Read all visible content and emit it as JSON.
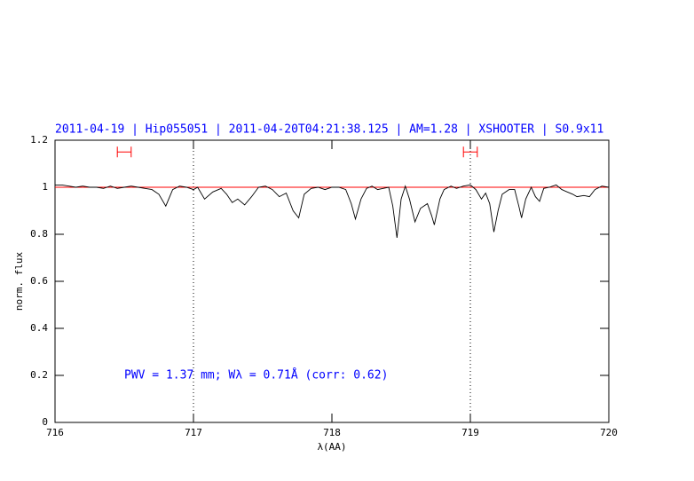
{
  "chart_data": {
    "type": "line",
    "title": "2011-04-19 | Hip055051 | 2011-04-20T04:21:38.125 | AM=1.28 | XSHOOTER | S0.9x11",
    "xlabel": "λ(AA)",
    "ylabel": "norm. flux",
    "annotation": "PWV = 1.37 mm; Wλ = 0.71Å (corr: 0.62)",
    "color": "#000000",
    "title_color": "#0000ff",
    "x": [
      716.0,
      716.05,
      716.1,
      716.15,
      716.2,
      716.25,
      716.3,
      716.35,
      716.4,
      716.45,
      716.5,
      716.55,
      716.6,
      716.65,
      716.7,
      716.75,
      716.8,
      716.85,
      716.9,
      716.95,
      717.0,
      717.03,
      717.08,
      717.14,
      717.2,
      717.24,
      717.28,
      717.32,
      717.37,
      717.42,
      717.47,
      717.52,
      717.57,
      717.62,
      717.67,
      717.72,
      717.76,
      717.8,
      717.85,
      717.9,
      717.95,
      718.0,
      718.05,
      718.1,
      718.14,
      718.17,
      718.21,
      718.25,
      718.29,
      718.33,
      718.37,
      718.41,
      718.44,
      718.47,
      718.5,
      718.53,
      718.56,
      718.6,
      718.64,
      718.69,
      718.72,
      718.74,
      718.78,
      718.81,
      718.86,
      718.9,
      718.95,
      719.0,
      719.04,
      719.08,
      719.11,
      719.14,
      719.17,
      719.2,
      719.23,
      719.28,
      719.32,
      719.35,
      719.37,
      719.4,
      719.44,
      719.47,
      719.5,
      719.53,
      719.57,
      719.62,
      719.66,
      719.7,
      719.74,
      719.77,
      719.82,
      719.86,
      719.9,
      719.95,
      720.0
    ],
    "values": [
      1.01,
      1.01,
      1.005,
      1.0,
      1.005,
      1.0,
      1.0,
      0.995,
      1.005,
      0.995,
      1.0,
      1.005,
      1.0,
      0.995,
      0.99,
      0.97,
      0.92,
      0.99,
      1.005,
      1.0,
      0.99,
      1.0,
      0.95,
      0.98,
      0.995,
      0.97,
      0.935,
      0.95,
      0.925,
      0.96,
      1.0,
      1.005,
      0.99,
      0.96,
      0.975,
      0.9,
      0.87,
      0.97,
      0.995,
      1.0,
      0.99,
      1.0,
      1.0,
      0.99,
      0.93,
      0.865,
      0.95,
      0.995,
      1.005,
      0.99,
      0.995,
      1.0,
      0.92,
      0.785,
      0.95,
      1.005,
      0.95,
      0.853,
      0.91,
      0.93,
      0.88,
      0.84,
      0.95,
      0.99,
      1.005,
      0.995,
      1.005,
      1.01,
      0.99,
      0.95,
      0.975,
      0.93,
      0.81,
      0.9,
      0.97,
      0.99,
      0.99,
      0.92,
      0.87,
      0.95,
      1.0,
      0.96,
      0.94,
      0.995,
      1.0,
      1.01,
      0.99,
      0.98,
      0.97,
      0.96,
      0.965,
      0.96,
      0.99,
      1.005,
      1.0
    ],
    "continuum": 1,
    "continuum_color": "#ff0000",
    "vlines": [
      717,
      719
    ],
    "intervals": [
      {
        "x": [
          716.45,
          716.55
        ],
        "y": 1.15
      },
      {
        "x": [
          718.95,
          719.05
        ],
        "y": 1.15
      }
    ],
    "interval_color": "#ff0000",
    "xlim": [
      716,
      720
    ],
    "xticks": [
      716,
      717,
      718,
      719,
      720
    ],
    "ylim": [
      0,
      1.2
    ],
    "yticks": [
      0,
      0.2,
      0.4,
      0.6,
      0.8,
      1,
      1.2
    ]
  }
}
